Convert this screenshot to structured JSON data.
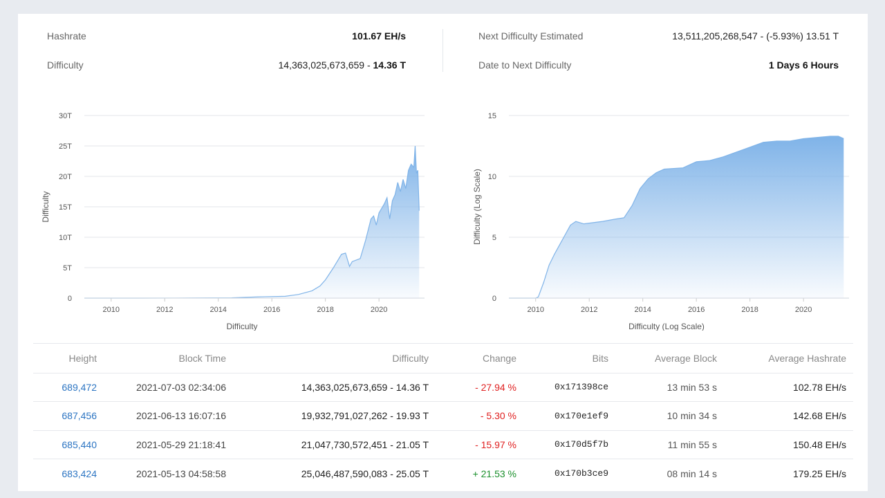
{
  "stats": {
    "hashrate_label": "Hashrate",
    "hashrate_value": "101.67 EH/s",
    "difficulty_label": "Difficulty",
    "difficulty_value_plain": "14,363,025,673,659 -",
    "difficulty_value_bold": "14.36 T",
    "next_label": "Next Difficulty Estimated",
    "next_value": "13,511,205,268,547 - (-5.93%) 13.51 T",
    "date_label": "Date to Next Difficulty",
    "date_value": "1 Days 6 Hours"
  },
  "chart_data": [
    {
      "type": "area",
      "title": "",
      "xlabel": "Difficulty",
      "ylabel": "Difficulty",
      "x_ticks": [
        "2010",
        "2012",
        "2014",
        "2016",
        "2018",
        "2020"
      ],
      "y_ticks": [
        "0",
        "5T",
        "10T",
        "15T",
        "20T",
        "25T",
        "30T"
      ],
      "xlim": [
        2009.0,
        2021.7
      ],
      "ylim": [
        0,
        30
      ],
      "grid": true,
      "color": "#7fb3e8",
      "series": [
        {
          "x": [
            2009.0,
            2011.0,
            2013.0,
            2014.5,
            2015.5,
            2016.5,
            2017.0,
            2017.5,
            2017.8,
            2018.0,
            2018.3,
            2018.6,
            2018.75,
            2018.9,
            2019.0,
            2019.3,
            2019.5,
            2019.7,
            2019.8,
            2019.9,
            2020.0,
            2020.2,
            2020.3,
            2020.4,
            2020.5,
            2020.6,
            2020.7,
            2020.8,
            2020.9,
            2021.0,
            2021.1,
            2021.2,
            2021.3,
            2021.35,
            2021.4,
            2021.45,
            2021.5
          ],
          "y": [
            0,
            0,
            0.01,
            0.05,
            0.2,
            0.3,
            0.6,
            1.2,
            2.0,
            3.0,
            5.0,
            7.2,
            7.4,
            5.2,
            6.0,
            6.5,
            9.5,
            13.0,
            13.5,
            12.0,
            14.0,
            15.5,
            16.5,
            13.0,
            16.0,
            17.0,
            19.0,
            17.5,
            19.5,
            18.0,
            21.0,
            22.0,
            21.5,
            25.0,
            20.5,
            21.0,
            14.36
          ]
        }
      ]
    },
    {
      "type": "area",
      "title": "",
      "xlabel": "Difficulty (Log Scale)",
      "ylabel": "Difficulty (Log Scale)",
      "x_ticks": [
        "2010",
        "2012",
        "2014",
        "2016",
        "2018",
        "2020"
      ],
      "y_ticks": [
        "0",
        "5",
        "10",
        "15"
      ],
      "xlim": [
        2009.0,
        2021.7
      ],
      "ylim": [
        0,
        15
      ],
      "grid": true,
      "color": "#7fb3e8",
      "series": [
        {
          "x": [
            2009.0,
            2010.0,
            2010.1,
            2010.3,
            2010.5,
            2010.7,
            2010.9,
            2011.1,
            2011.3,
            2011.5,
            2011.8,
            2012.5,
            2013.0,
            2013.3,
            2013.6,
            2013.9,
            2014.2,
            2014.5,
            2014.8,
            2015.5,
            2016.0,
            2016.5,
            2017.0,
            2017.5,
            2018.0,
            2018.5,
            2019.0,
            2019.5,
            2020.0,
            2020.5,
            2021.0,
            2021.3,
            2021.5
          ],
          "y": [
            0,
            0,
            0.1,
            1.3,
            2.7,
            3.6,
            4.4,
            5.2,
            6.0,
            6.3,
            6.1,
            6.3,
            6.5,
            6.6,
            7.6,
            9.0,
            9.8,
            10.3,
            10.6,
            10.7,
            11.2,
            11.3,
            11.6,
            12.0,
            12.4,
            12.8,
            12.9,
            12.9,
            13.1,
            13.2,
            13.3,
            13.3,
            13.1
          ]
        }
      ]
    }
  ],
  "table": {
    "headers": [
      "Height",
      "Block Time",
      "Difficulty",
      "Change",
      "Bits",
      "Average Block",
      "Average Hashrate"
    ],
    "rows": [
      {
        "height": "689,472",
        "time": "2021-07-03 02:34:06",
        "difficulty": "14,363,025,673,659 - 14.36 T",
        "change": "- 27.94 %",
        "change_dir": "neg",
        "bits": "0x171398ce",
        "avg_block": "13 min 53 s",
        "avg_hashrate": "102.78 EH/s"
      },
      {
        "height": "687,456",
        "time": "2021-06-13 16:07:16",
        "difficulty": "19,932,791,027,262 - 19.93 T",
        "change": "- 5.30 %",
        "change_dir": "neg",
        "bits": "0x170e1ef9",
        "avg_block": "10 min 34 s",
        "avg_hashrate": "142.68 EH/s"
      },
      {
        "height": "685,440",
        "time": "2021-05-29 21:18:41",
        "difficulty": "21,047,730,572,451 - 21.05 T",
        "change": "- 15.97 %",
        "change_dir": "neg",
        "bits": "0x170d5f7b",
        "avg_block": "11 min 55 s",
        "avg_hashrate": "150.48 EH/s"
      },
      {
        "height": "683,424",
        "time": "2021-05-13 04:58:58",
        "difficulty": "25,046,487,590,083 - 25.05 T",
        "change": "+ 21.53 %",
        "change_dir": "pos",
        "bits": "0x170b3ce9",
        "avg_block": "08 min 14 s",
        "avg_hashrate": "179.25 EH/s"
      }
    ]
  }
}
